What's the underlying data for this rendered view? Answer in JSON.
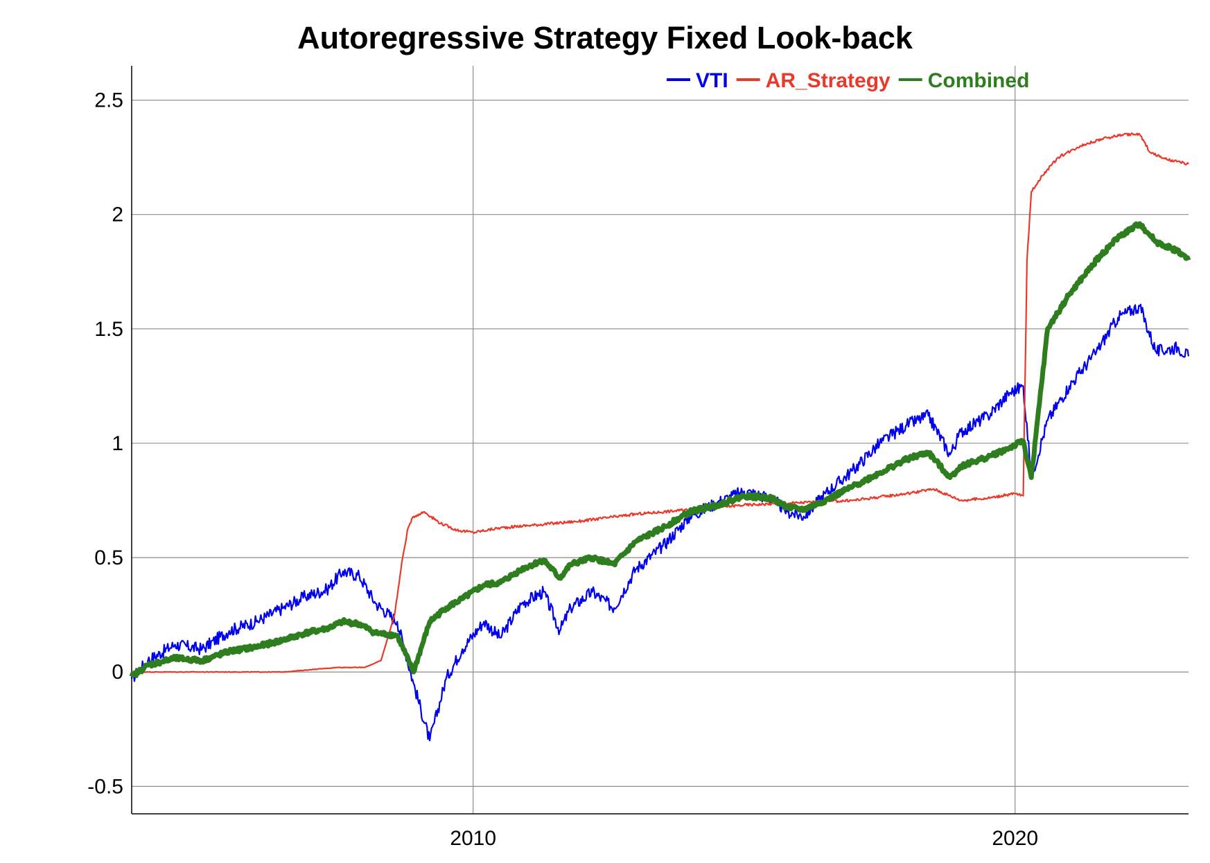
{
  "chart_data": {
    "type": "line",
    "title": "Autoregressive Strategy Fixed Look-back",
    "xlabel": "",
    "ylabel": "",
    "xlim": [
      2003.7,
      2023.2
    ],
    "ylim": [
      -0.62,
      2.65
    ],
    "x_ticks": [
      2010,
      2020
    ],
    "y_ticks": [
      -0.5,
      0,
      0.5,
      1,
      1.5,
      2,
      2.5
    ],
    "x_tick_labels": [
      "2010",
      "2020"
    ],
    "y_tick_labels": [
      "-0.5",
      "0",
      "0.5",
      "1",
      "1.5",
      "2",
      "2.5"
    ],
    "grid": true,
    "legend_position": "top-right",
    "series": [
      {
        "name": "VTI",
        "color": "#0000ee",
        "x": [
          2003.7,
          2004.0,
          2004.5,
          2005.0,
          2005.5,
          2006.0,
          2006.5,
          2006.9,
          2007.3,
          2007.6,
          2007.9,
          2008.2,
          2008.6,
          2008.9,
          2009.2,
          2009.5,
          2009.8,
          2010.2,
          2010.5,
          2010.9,
          2011.3,
          2011.6,
          2011.8,
          2012.2,
          2012.6,
          2013.0,
          2013.5,
          2014.0,
          2014.5,
          2015.0,
          2015.5,
          2015.8,
          2016.1,
          2016.5,
          2017.0,
          2017.5,
          2018.0,
          2018.4,
          2018.8,
          2019.0,
          2019.5,
          2019.9,
          2020.15,
          2020.3,
          2020.6,
          2021.0,
          2021.5,
          2021.9,
          2022.3,
          2022.6,
          2023.0,
          2023.2
        ],
        "values": [
          -0.03,
          0.05,
          0.12,
          0.1,
          0.18,
          0.22,
          0.28,
          0.33,
          0.36,
          0.44,
          0.42,
          0.3,
          0.22,
          -0.05,
          -0.3,
          -0.03,
          0.1,
          0.22,
          0.15,
          0.3,
          0.35,
          0.18,
          0.28,
          0.35,
          0.28,
          0.45,
          0.55,
          0.68,
          0.74,
          0.79,
          0.76,
          0.7,
          0.68,
          0.78,
          0.88,
          1.0,
          1.08,
          1.12,
          0.95,
          1.05,
          1.12,
          1.22,
          1.25,
          0.85,
          1.1,
          1.25,
          1.4,
          1.55,
          1.6,
          1.4,
          1.42,
          1.38
        ]
      },
      {
        "name": "AR_Strategy",
        "color": "#e8392a",
        "x": [
          2003.7,
          2004.0,
          2005.0,
          2006.0,
          2006.5,
          2007.0,
          2007.5,
          2008.0,
          2008.3,
          2008.55,
          2008.7,
          2008.8,
          2008.9,
          2009.1,
          2009.4,
          2009.7,
          2010.0,
          2010.5,
          2011.0,
          2011.5,
          2012.0,
          2013.0,
          2014.0,
          2015.0,
          2016.0,
          2017.0,
          2018.0,
          2018.5,
          2019.0,
          2019.5,
          2020.0,
          2020.15,
          2020.22,
          2020.3,
          2020.5,
          2020.8,
          2021.2,
          2021.6,
          2022.0,
          2022.3,
          2022.5,
          2022.8,
          2023.2
        ],
        "values": [
          0.0,
          0.0,
          0.0,
          0.0,
          0.0,
          0.01,
          0.02,
          0.02,
          0.05,
          0.25,
          0.5,
          0.63,
          0.68,
          0.7,
          0.65,
          0.62,
          0.61,
          0.63,
          0.64,
          0.65,
          0.66,
          0.69,
          0.71,
          0.73,
          0.74,
          0.75,
          0.78,
          0.8,
          0.75,
          0.76,
          0.78,
          0.77,
          1.8,
          2.1,
          2.17,
          2.25,
          2.3,
          2.33,
          2.35,
          2.35,
          2.27,
          2.24,
          2.22
        ]
      },
      {
        "name": "Combined",
        "color": "#2e7d1f",
        "x": [
          2003.7,
          2004.0,
          2004.5,
          2005.0,
          2005.5,
          2006.0,
          2006.5,
          2006.9,
          2007.3,
          2007.6,
          2007.9,
          2008.2,
          2008.6,
          2008.9,
          2009.2,
          2009.5,
          2009.8,
          2010.2,
          2010.5,
          2010.9,
          2011.3,
          2011.6,
          2011.8,
          2012.2,
          2012.6,
          2013.0,
          2013.5,
          2014.0,
          2014.5,
          2015.0,
          2015.5,
          2015.8,
          2016.1,
          2016.5,
          2017.0,
          2017.5,
          2018.0,
          2018.4,
          2018.8,
          2019.0,
          2019.5,
          2019.9,
          2020.15,
          2020.3,
          2020.6,
          2021.0,
          2021.5,
          2021.9,
          2022.3,
          2022.6,
          2023.0,
          2023.2
        ],
        "values": [
          -0.02,
          0.03,
          0.06,
          0.05,
          0.09,
          0.11,
          0.14,
          0.17,
          0.19,
          0.22,
          0.21,
          0.17,
          0.16,
          0.0,
          0.22,
          0.28,
          0.32,
          0.38,
          0.39,
          0.45,
          0.49,
          0.41,
          0.47,
          0.5,
          0.47,
          0.57,
          0.63,
          0.7,
          0.73,
          0.77,
          0.76,
          0.72,
          0.71,
          0.75,
          0.81,
          0.87,
          0.93,
          0.96,
          0.85,
          0.9,
          0.94,
          0.98,
          1.01,
          0.85,
          1.5,
          1.65,
          1.8,
          1.9,
          1.96,
          1.88,
          1.84,
          1.8
        ]
      }
    ]
  }
}
